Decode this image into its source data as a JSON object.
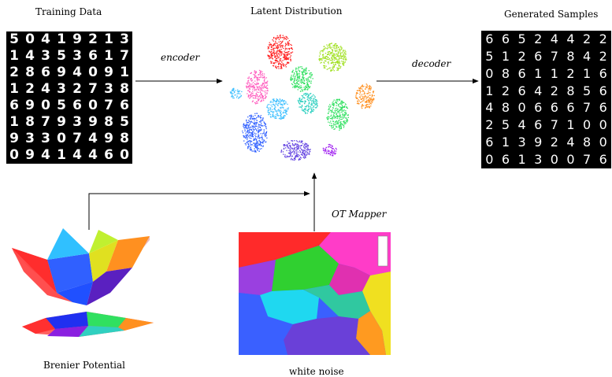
{
  "labels": {
    "training_data": "Training Data",
    "latent_distribution": "Latent Distribution",
    "generated_samples": "Generated Samples",
    "encoder": "encoder",
    "decoder": "decoder",
    "ot_mapper": "OT Mapper",
    "brenier_potential": "Brenier Potential",
    "white_noise": "white noise"
  },
  "training_digits": [
    "5",
    "0",
    "4",
    "1",
    "9",
    "2",
    "1",
    "3",
    "1",
    "4",
    "3",
    "5",
    "3",
    "6",
    "1",
    "7",
    "2",
    "8",
    "6",
    "9",
    "4",
    "0",
    "9",
    "1",
    "1",
    "2",
    "4",
    "3",
    "2",
    "7",
    "3",
    "8",
    "6",
    "9",
    "0",
    "5",
    "6",
    "0",
    "7",
    "6",
    "1",
    "8",
    "7",
    "9",
    "3",
    "9",
    "8",
    "5",
    "9",
    "3",
    "3",
    "0",
    "7",
    "4",
    "9",
    "8",
    "0",
    "9",
    "4",
    "1",
    "4",
    "4",
    "6",
    "0"
  ],
  "generated_digits": [
    "6",
    "6",
    "5",
    "2",
    "4",
    "4",
    "2",
    "2",
    "5",
    "1",
    "2",
    "6",
    "7",
    "8",
    "4",
    "2",
    "0",
    "8",
    "6",
    "1",
    "1",
    "2",
    "1",
    "6",
    "1",
    "2",
    "6",
    "4",
    "2",
    "8",
    "5",
    "6",
    "4",
    "8",
    "0",
    "6",
    "6",
    "6",
    "7",
    "6",
    "2",
    "5",
    "4",
    "6",
    "7",
    "1",
    "0",
    "0",
    "6",
    "1",
    "3",
    "9",
    "2",
    "4",
    "8",
    "0",
    "0",
    "6",
    "1",
    "3",
    "0",
    "0",
    "7",
    "6"
  ],
  "colors": {
    "cluster_palette": [
      "#ff2020",
      "#a020f0",
      "#ff60c0",
      "#40c0ff",
      "#3060ff",
      "#30e060",
      "#ff9020",
      "#a0e020",
      "#30d0c0",
      "#6040e0"
    ],
    "noise_regions": [
      "#ff2a2a",
      "#ff3cc8",
      "#30d030",
      "#1fd8f0",
      "#3a60ff",
      "#9a40e0",
      "#f0e020",
      "#30c8a0",
      "#ff9a20",
      "#e030b0"
    ]
  }
}
